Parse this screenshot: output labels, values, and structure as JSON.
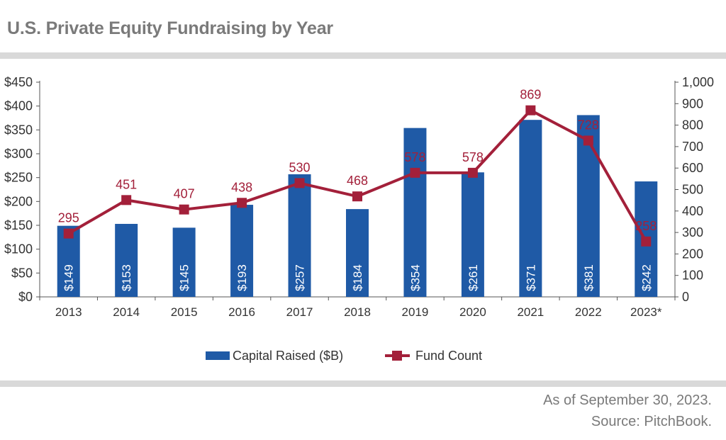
{
  "title": "U.S. Private Equity Fundraising by Year",
  "footer": {
    "line1": "As of September 30, 2023.",
    "line2": "Source: PitchBook."
  },
  "colors": {
    "bar": "#1f5aa6",
    "line": "#a3203a",
    "axis": "#555555",
    "text": "#333333",
    "muted": "#7a7a7a",
    "rule": "#d9d9d9"
  },
  "chart_data": {
    "type": "bar",
    "title": "U.S. Private Equity Fundraising by Year",
    "categories": [
      "2013",
      "2014",
      "2015",
      "2016",
      "2017",
      "2018",
      "2019",
      "2020",
      "2021",
      "2022",
      "2023*"
    ],
    "series": [
      {
        "name": "Capital Raised ($B)",
        "type": "bar",
        "axis": "left",
        "values": [
          149,
          153,
          145,
          193,
          257,
          184,
          354,
          261,
          371,
          381,
          242
        ],
        "labels": [
          "$149",
          "$153",
          "$145",
          "$193",
          "$257",
          "$184",
          "$354",
          "$261",
          "$371",
          "$381",
          "$242"
        ]
      },
      {
        "name": "Fund Count",
        "type": "line",
        "axis": "right",
        "values": [
          295,
          451,
          407,
          438,
          530,
          468,
          578,
          578,
          869,
          728,
          258
        ],
        "labels": [
          "295",
          "451",
          "407",
          "438",
          "530",
          "468",
          "578",
          "578",
          "869",
          "728",
          "258"
        ]
      }
    ],
    "y_left": {
      "min": 0,
      "max": 450,
      "step": 50,
      "ticks": [
        "$0",
        "$50",
        "$100",
        "$150",
        "$200",
        "$250",
        "$300",
        "$350",
        "$400",
        "$450"
      ]
    },
    "y_right": {
      "min": 0,
      "max": 1000,
      "step": 100,
      "ticks": [
        "0",
        "100",
        "200",
        "300",
        "400",
        "500",
        "600",
        "700",
        "800",
        "900",
        "1,000"
      ]
    },
    "legend": {
      "position": "bottom",
      "entries": [
        "Capital Raised ($B)",
        "Fund Count"
      ]
    }
  }
}
